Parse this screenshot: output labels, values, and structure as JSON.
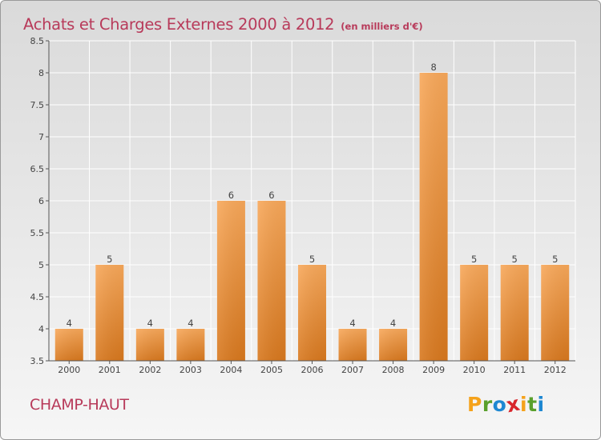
{
  "header": {
    "title": "Achats et Charges Externes 2000 à 2012",
    "unit": "(en milliers d'€)"
  },
  "commune": "CHAMP-HAUT",
  "logo": {
    "text": "Proxiti",
    "letters": [
      "P",
      "r",
      "o",
      "x",
      "i",
      "t",
      "i"
    ],
    "colors": [
      "#f5a21b",
      "#5aa02c",
      "#1e88d2",
      "#d8262c",
      "#f5a21b",
      "#5aa02c",
      "#1e88d2"
    ]
  },
  "colors": {
    "title": "#b83a5a",
    "bar_top": "#f8a85a",
    "bar_bottom": "#d8781e",
    "axis": "#555555",
    "grid": "#ffffff"
  },
  "chart_data": {
    "type": "bar",
    "title": "Achats et Charges Externes 2000 à 2012",
    "subtitle": "(en milliers d'€)",
    "categories": [
      "2000",
      "2001",
      "2002",
      "2003",
      "2004",
      "2005",
      "2006",
      "2007",
      "2008",
      "2009",
      "2010",
      "2011",
      "2012"
    ],
    "values": [
      4,
      5,
      4,
      4,
      6,
      6,
      5,
      4,
      4,
      8,
      5,
      5,
      5
    ],
    "data_labels": [
      "4",
      "5",
      "4",
      "4",
      "6",
      "6",
      "5",
      "4",
      "4",
      "8",
      "5",
      "5",
      "5"
    ],
    "ylim": [
      3.5,
      8.5
    ],
    "yticks": [
      3.5,
      4,
      4.5,
      5,
      5.5,
      6,
      6.5,
      7,
      7.5,
      8,
      8.5
    ],
    "ytick_labels": [
      "3.5",
      "4",
      "4.5",
      "5",
      "5.5",
      "6",
      "6.5",
      "7",
      "7.5",
      "8",
      "8.5"
    ],
    "xlabel": "",
    "ylabel": "",
    "grid": true,
    "legend": "none"
  }
}
